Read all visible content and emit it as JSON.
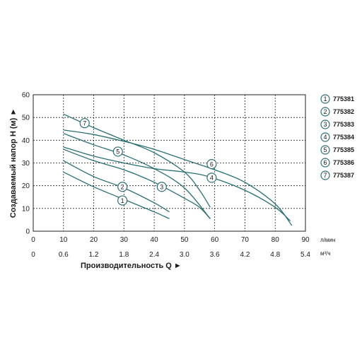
{
  "chart_data": {
    "type": "line",
    "ylabel": "Создаваемый напор H (м) ►",
    "xlabel": "Производительность Q ►",
    "x_unit": "л/мин",
    "x2_unit": "м³/ч",
    "xlim": [
      0,
      90
    ],
    "ylim": [
      0,
      60
    ],
    "x_ticks": [
      "0",
      "10",
      "20",
      "30",
      "40",
      "50",
      "60",
      "70",
      "80",
      "90"
    ],
    "x2_ticks": [
      "0",
      "0.6",
      "1.2",
      "1.8",
      "2.4",
      "3.0",
      "3.6",
      "4.2",
      "4.8",
      "5.4"
    ],
    "y_ticks": [
      "0",
      "10",
      "20",
      "30",
      "40",
      "50",
      "60"
    ],
    "grid": true,
    "legend_position": "right",
    "colors": {
      "curve": "#2a6f73",
      "grid": "#222222",
      "marker_fill": "#ffffff"
    },
    "series": [
      {
        "marker": "1",
        "name": "775381",
        "x": [
          10,
          20,
          30,
          40,
          45
        ],
        "y": [
          26,
          19.5,
          14,
          8.5,
          5.5
        ],
        "label_at": [
          29.5,
          13.5
        ]
      },
      {
        "marker": "2",
        "name": "775382",
        "x": [
          10,
          20,
          30,
          40,
          45
        ],
        "y": [
          31,
          24,
          19,
          12.5,
          8.5
        ],
        "label_at": [
          29.5,
          19.5
        ]
      },
      {
        "marker": "3",
        "name": "775383",
        "x": [
          10,
          20,
          30,
          40,
          50,
          55,
          58.5
        ],
        "y": [
          36,
          31,
          27,
          21.5,
          14.5,
          10.5,
          5.5
        ],
        "label_at": [
          42.5,
          19.5
        ]
      },
      {
        "marker": "4",
        "name": "775384",
        "x": [
          10,
          20,
          30,
          40,
          50,
          58,
          70,
          80,
          85
        ],
        "y": [
          37,
          33,
          30,
          27.5,
          26,
          24,
          18,
          10.5,
          4.5
        ],
        "label_at": [
          59,
          23.5
        ]
      },
      {
        "marker": "5",
        "name": "775385",
        "x": [
          10,
          20,
          30,
          40,
          50,
          58.5
        ],
        "y": [
          43,
          38,
          33.5,
          27.5,
          19,
          5.5
        ],
        "label_at": [
          28,
          35
        ]
      },
      {
        "marker": "6",
        "name": "775386",
        "x": [
          10,
          20,
          30,
          40,
          50,
          60,
          70,
          80,
          85.5
        ],
        "y": [
          44.5,
          42.5,
          39.5,
          36,
          31.5,
          27,
          21.5,
          12,
          2.5
        ],
        "label_at": [
          59,
          29.5
        ]
      },
      {
        "marker": "7",
        "name": "775387",
        "x": [
          10,
          20,
          30,
          40,
          50,
          55,
          58.5
        ],
        "y": [
          51.5,
          45.5,
          40,
          34.5,
          26,
          18,
          10.5
        ],
        "label_at": [
          17,
          47.5
        ]
      }
    ]
  }
}
